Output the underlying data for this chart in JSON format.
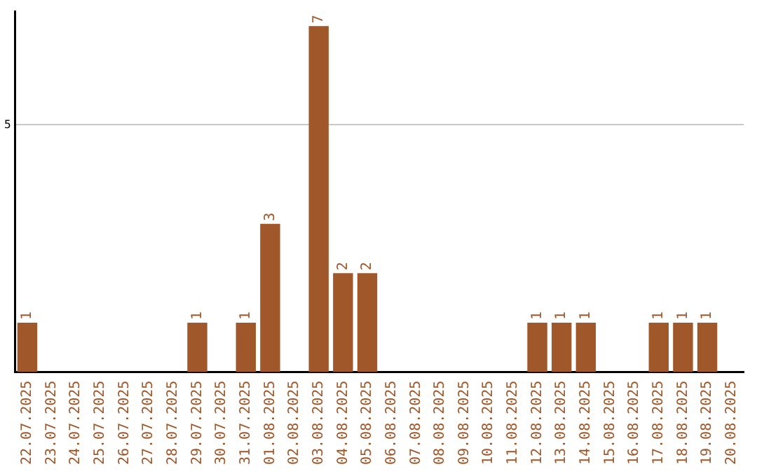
{
  "chart_data": {
    "type": "bar",
    "categories": [
      "22.07.2025",
      "23.07.2025",
      "24.07.2025",
      "25.07.2025",
      "26.07.2025",
      "27.07.2025",
      "28.07.2025",
      "29.07.2025",
      "30.07.2025",
      "31.07.2025",
      "01.08.2025",
      "02.08.2025",
      "03.08.2025",
      "04.08.2025",
      "05.08.2025",
      "06.08.2025",
      "07.08.2025",
      "08.08.2025",
      "09.08.2025",
      "10.08.2025",
      "11.08.2025",
      "12.08.2025",
      "13.08.2025",
      "14.08.2025",
      "15.08.2025",
      "16.08.2025",
      "17.08.2025",
      "18.08.2025",
      "19.08.2025",
      "20.08.2025"
    ],
    "values": [
      1,
      0,
      0,
      0,
      0,
      0,
      0,
      1,
      0,
      1,
      3,
      0,
      7,
      2,
      2,
      0,
      0,
      0,
      0,
      0,
      0,
      1,
      1,
      1,
      0,
      0,
      1,
      1,
      1,
      0
    ],
    "value_labels": [
      "1",
      null,
      null,
      null,
      null,
      null,
      null,
      "1",
      null,
      "1",
      "3",
      null,
      "7",
      "2",
      "2",
      null,
      null,
      null,
      null,
      null,
      null,
      "1",
      "1",
      "1",
      null,
      null,
      "1",
      "1",
      "1",
      null
    ],
    "color": "#a0572a",
    "ylim": [
      0,
      7.3
    ],
    "yticks": [
      5
    ],
    "grid": "y",
    "legend": false
  }
}
